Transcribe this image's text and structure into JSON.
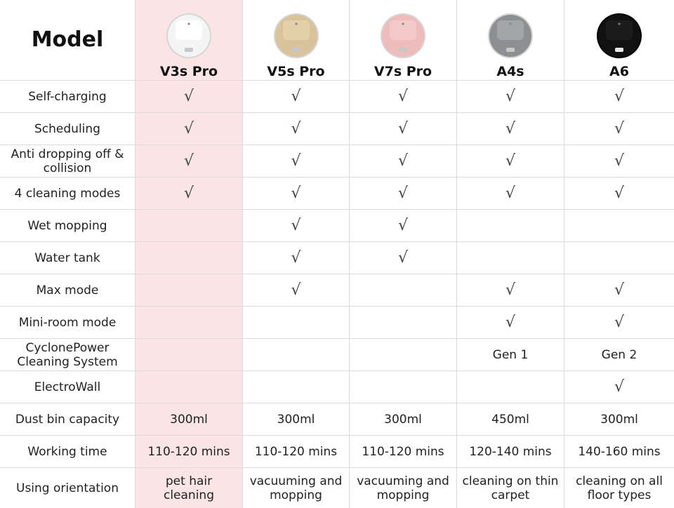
{
  "header": {
    "title": "Model"
  },
  "products": [
    {
      "name": "V3s Pro",
      "icon": "white-robot-vacuum-icon",
      "body_color": "#f4f4f4",
      "panel_color": "#ffffff"
    },
    {
      "name": "V5s Pro",
      "icon": "champagne-robot-vacuum-icon",
      "body_color": "#d9c39a",
      "panel_color": "#e4d2ad"
    },
    {
      "name": "V7s Pro",
      "icon": "pink-robot-vacuum-icon",
      "body_color": "#efbcbc",
      "panel_color": "#f3caca"
    },
    {
      "name": "A4s",
      "icon": "gray-robot-vacuum-icon",
      "body_color": "#8d8f91",
      "panel_color": "#a5a7a9"
    },
    {
      "name": "A6",
      "icon": "black-robot-vacuum-icon",
      "body_color": "#111111",
      "panel_color": "#1e1e1e"
    }
  ],
  "highlight_color": "#fbe4e4",
  "rows": [
    {
      "label": "Self-charging",
      "values": [
        "√",
        "√",
        "√",
        "√",
        "√"
      ]
    },
    {
      "label": "Scheduling",
      "values": [
        "√",
        "√",
        "√",
        "√",
        "√"
      ]
    },
    {
      "label": "Anti dropping off & collision",
      "values": [
        "√",
        "√",
        "√",
        "√",
        "√"
      ]
    },
    {
      "label": "4 cleaning modes",
      "values": [
        "√",
        "√",
        "√",
        "√",
        "√"
      ]
    },
    {
      "label": "Wet mopping",
      "values": [
        "",
        "√",
        "√",
        "",
        ""
      ]
    },
    {
      "label": "Water tank",
      "values": [
        "",
        "√",
        "√",
        "",
        ""
      ]
    },
    {
      "label": "Max mode",
      "values": [
        "",
        "√",
        "",
        "√",
        "√"
      ]
    },
    {
      "label": "Mini-room mode",
      "values": [
        "",
        "",
        "",
        "√",
        "√"
      ]
    },
    {
      "label": "CyclonePower Cleaning System",
      "values": [
        "",
        "",
        "",
        "Gen 1",
        "Gen 2"
      ]
    },
    {
      "label": "ElectroWall",
      "values": [
        "",
        "",
        "",
        "",
        "√"
      ]
    },
    {
      "label": "Dust bin capacity",
      "values": [
        "300ml",
        "300ml",
        "300ml",
        "450ml",
        "300ml"
      ]
    },
    {
      "label": "Working time",
      "values": [
        "110-120 mins",
        "110-120 mins",
        "110-120 mins",
        "120-140 mins",
        "140-160 mins"
      ]
    },
    {
      "label": "Using orientation",
      "values": [
        "pet hair cleaning",
        "vacuuming and mopping",
        "vacuuming and mopping",
        "cleaning on thin carpet",
        "cleaning on all floor types"
      ]
    }
  ]
}
